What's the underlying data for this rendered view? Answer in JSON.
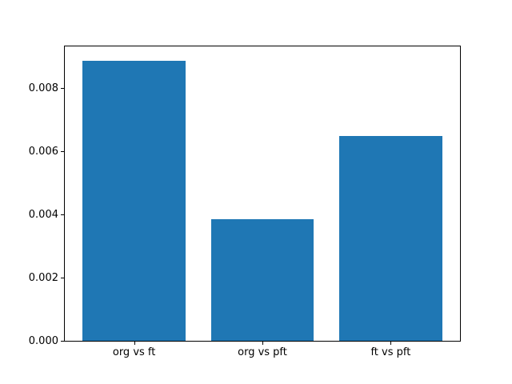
{
  "chart_data": {
    "type": "bar",
    "categories": [
      "org vs ft",
      "org vs pft",
      "ft vs pft"
    ],
    "values": [
      0.00888,
      0.00385,
      0.00649
    ],
    "title": "",
    "xlabel": "",
    "ylabel": "",
    "ylim": [
      0,
      0.009324
    ],
    "xlim": [
      -0.54,
      2.54
    ],
    "bar_width_units": 0.8,
    "yticks": [
      {
        "value": 0.0,
        "label": "0.000"
      },
      {
        "value": 0.002,
        "label": "0.002"
      },
      {
        "value": 0.004,
        "label": "0.004"
      },
      {
        "value": 0.006,
        "label": "0.006"
      },
      {
        "value": 0.008,
        "label": "0.008"
      }
    ],
    "bar_color": "#1f77b4",
    "axes_color": "#000000",
    "background_color": "#ffffff",
    "grid": false,
    "legend": null
  }
}
